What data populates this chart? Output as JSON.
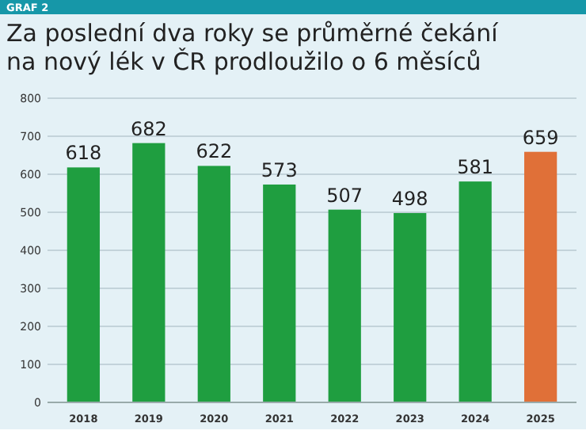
{
  "chart_data": {
    "type": "bar",
    "subtitle": "GRAF 2",
    "title": "Za poslední dva roky se průměrné čekání na nový lék v ČR prodloužilo o 6 měsíců",
    "categories": [
      "2018",
      "2019",
      "2020",
      "2021",
      "2022",
      "2023",
      "2024",
      "2025"
    ],
    "values": [
      618,
      682,
      622,
      573,
      507,
      498,
      581,
      659
    ],
    "colors": [
      "#1f9e40",
      "#1f9e40",
      "#1f9e40",
      "#1f9e40",
      "#1f9e40",
      "#1f9e40",
      "#1f9e40",
      "#e07038"
    ],
    "ylim": [
      0,
      800
    ],
    "yticks": [
      0,
      100,
      200,
      300,
      400,
      500,
      600,
      700,
      800
    ],
    "grid": "y",
    "data_labels": true
  }
}
